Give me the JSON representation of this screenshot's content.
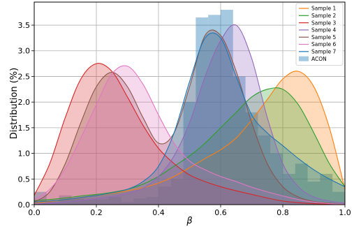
{
  "chart_data": {
    "type": "area",
    "title": "",
    "xlabel": "β",
    "ylabel": "Distribution (%)",
    "xlim": [
      0.0,
      1.0
    ],
    "ylim": [
      0.0,
      3.95
    ],
    "xticks": [
      0.0,
      0.2,
      0.4,
      0.6,
      0.8,
      1.0
    ],
    "xtick_labels": [
      "0.0",
      "0.2",
      "0.4",
      "0.6",
      "0.8",
      "1.0"
    ],
    "yticks": [
      0.0,
      0.5,
      1.0,
      1.5,
      2.0,
      2.5,
      3.0,
      3.5
    ],
    "ytick_labels": [
      "0.0",
      "0.5",
      "1.0",
      "1.5",
      "2.0",
      "2.5",
      "3.0",
      "3.5"
    ],
    "grid": true,
    "legend_position": "top-right",
    "series": [
      {
        "name": "Sample 1",
        "color": "#ff7f0e",
        "x": [
          0.0,
          0.05,
          0.1,
          0.15,
          0.2,
          0.25,
          0.3,
          0.35,
          0.4,
          0.45,
          0.5,
          0.55,
          0.6,
          0.65,
          0.7,
          0.75,
          0.8,
          0.85,
          0.9,
          0.95,
          1.0
        ],
        "y": [
          0.03,
          0.06,
          0.1,
          0.14,
          0.18,
          0.22,
          0.27,
          0.33,
          0.42,
          0.55,
          0.72,
          0.9,
          1.07,
          1.3,
          1.65,
          2.05,
          2.45,
          2.6,
          2.3,
          1.5,
          0.3
        ]
      },
      {
        "name": "Sample 2",
        "color": "#2ca02c",
        "x": [
          0.0,
          0.05,
          0.1,
          0.15,
          0.2,
          0.25,
          0.3,
          0.35,
          0.4,
          0.45,
          0.5,
          0.55,
          0.6,
          0.65,
          0.7,
          0.75,
          0.8,
          0.85,
          0.9,
          0.95,
          1.0
        ],
        "y": [
          0.08,
          0.1,
          0.13,
          0.17,
          0.2,
          0.24,
          0.3,
          0.4,
          0.55,
          0.75,
          0.95,
          1.2,
          1.5,
          1.8,
          2.1,
          2.25,
          2.25,
          1.95,
          1.4,
          0.8,
          0.35
        ]
      },
      {
        "name": "Sample 3",
        "color": "#d62728",
        "x": [
          0.0,
          0.05,
          0.1,
          0.15,
          0.2,
          0.25,
          0.3,
          0.35,
          0.4,
          0.45,
          0.5,
          0.55,
          0.6,
          0.65,
          0.7,
          0.75,
          0.8,
          0.85,
          0.9,
          0.95,
          1.0
        ],
        "y": [
          0.18,
          0.8,
          1.7,
          2.45,
          2.75,
          2.6,
          2.1,
          1.55,
          1.1,
          0.8,
          0.58,
          0.45,
          0.35,
          0.27,
          0.2,
          0.13,
          0.07,
          0.04,
          0.02,
          0.01,
          0.0
        ]
      },
      {
        "name": "Sample 4",
        "color": "#9467bd",
        "x": [
          0.0,
          0.05,
          0.1,
          0.15,
          0.2,
          0.25,
          0.3,
          0.35,
          0.4,
          0.45,
          0.5,
          0.55,
          0.6,
          0.65,
          0.7,
          0.75,
          0.8,
          0.85,
          0.9,
          0.95,
          1.0
        ],
        "y": [
          0.02,
          0.03,
          0.05,
          0.08,
          0.12,
          0.16,
          0.22,
          0.32,
          0.55,
          0.95,
          1.6,
          2.5,
          3.2,
          3.5,
          2.85,
          1.7,
          0.8,
          0.35,
          0.15,
          0.07,
          0.03
        ]
      },
      {
        "name": "Sample 5",
        "color": "#8c564b",
        "x": [
          0.0,
          0.05,
          0.1,
          0.15,
          0.2,
          0.25,
          0.3,
          0.35,
          0.4,
          0.45,
          0.5,
          0.55,
          0.6,
          0.65,
          0.7,
          0.75,
          0.8,
          0.85,
          0.9,
          0.95,
          1.0
        ],
        "y": [
          0.05,
          0.25,
          0.8,
          1.6,
          2.3,
          2.58,
          2.3,
          1.7,
          1.2,
          1.4,
          2.3,
          3.3,
          3.3,
          2.6,
          1.6,
          0.8,
          0.35,
          0.15,
          0.06,
          0.03,
          0.01
        ]
      },
      {
        "name": "Sample 6",
        "color": "#e377c2",
        "x": [
          0.0,
          0.05,
          0.1,
          0.15,
          0.2,
          0.25,
          0.3,
          0.35,
          0.4,
          0.45,
          0.5,
          0.55,
          0.6,
          0.65,
          0.7,
          0.75,
          0.8,
          0.85,
          0.9,
          0.95,
          1.0
        ],
        "y": [
          0.1,
          0.3,
          0.7,
          1.3,
          1.95,
          2.55,
          2.7,
          2.35,
          1.75,
          1.2,
          0.85,
          0.68,
          0.55,
          0.45,
          0.34,
          0.25,
          0.17,
          0.1,
          0.05,
          0.02,
          0.01
        ]
      },
      {
        "name": "Sample 7",
        "color": "#1f77b4",
        "x": [
          0.0,
          0.05,
          0.1,
          0.15,
          0.2,
          0.25,
          0.3,
          0.35,
          0.4,
          0.45,
          0.5,
          0.55,
          0.6,
          0.65,
          0.7,
          0.75,
          0.8,
          0.85,
          0.9,
          0.95,
          1.0
        ],
        "y": [
          0.05,
          0.07,
          0.1,
          0.14,
          0.18,
          0.23,
          0.3,
          0.45,
          0.75,
          1.4,
          2.4,
          3.25,
          3.25,
          2.5,
          1.75,
          1.4,
          1.15,
          0.9,
          0.68,
          0.5,
          0.35
        ]
      }
    ],
    "histogram": {
      "name": "ACON",
      "color": "#1f77b4",
      "bin_edges": [
        0.0,
        0.04,
        0.08,
        0.12,
        0.16,
        0.2,
        0.24,
        0.28,
        0.32,
        0.36,
        0.4,
        0.44,
        0.48,
        0.52,
        0.56,
        0.6,
        0.64,
        0.68,
        0.72,
        0.76,
        0.8,
        0.84,
        0.88,
        0.92,
        0.96,
        1.0
      ],
      "values": [
        0.25,
        0.05,
        0.18,
        0.12,
        0.1,
        0.1,
        0.15,
        0.05,
        0.12,
        0.15,
        0.35,
        0.5,
        2.0,
        3.65,
        3.7,
        3.8,
        2.5,
        1.8,
        1.35,
        1.0,
        0.6,
        0.8,
        0.45,
        0.6,
        0.25
      ]
    },
    "legend": [
      "Sample 1",
      "Sample 2",
      "Sample 3",
      "Sample 4",
      "Sample 5",
      "Sample 6",
      "Sample 7",
      "ACON"
    ]
  }
}
